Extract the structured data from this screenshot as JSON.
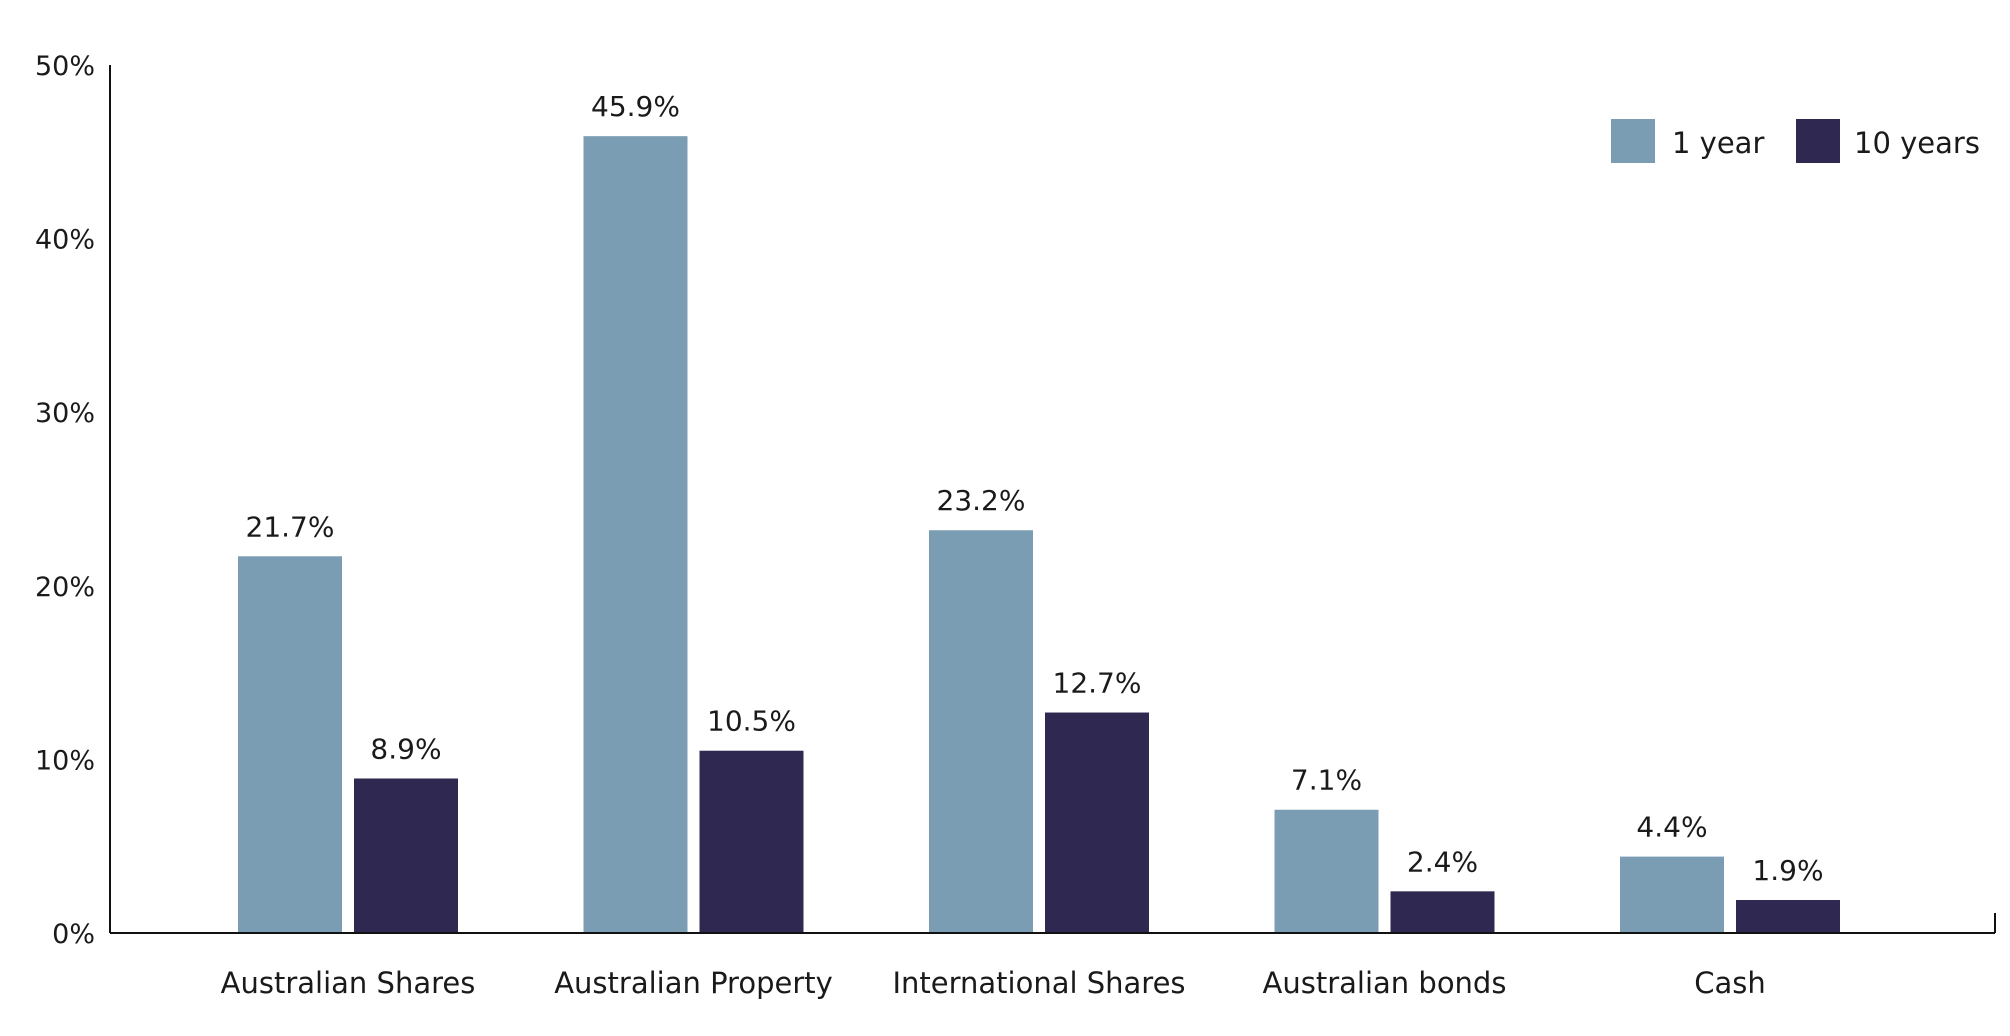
{
  "chart_data": {
    "type": "bar",
    "title": "",
    "xlabel": "",
    "ylabel": "",
    "ylim": [
      0,
      50
    ],
    "y_ticks": [
      0,
      10,
      20,
      30,
      40,
      50
    ],
    "y_tick_format": "%",
    "grid": false,
    "legend_position": "top-right",
    "categories": [
      "Australian Shares",
      "Australian Property",
      "International Shares",
      "Australian bonds",
      "Cash"
    ],
    "series": [
      {
        "name": "1 year",
        "color": "#7b9db3",
        "values": [
          21.7,
          45.9,
          23.2,
          7.1,
          4.4
        ],
        "labels": [
          "21.7%",
          "45.9%",
          "23.2%",
          "7.1%",
          "4.4%"
        ]
      },
      {
        "name": "10 years",
        "color": "#2f2850",
        "values": [
          8.9,
          10.5,
          12.7,
          2.4,
          1.9
        ],
        "labels": [
          "8.9%",
          "10.5%",
          "12.7%",
          "2.4%",
          "1.9%"
        ]
      }
    ]
  }
}
